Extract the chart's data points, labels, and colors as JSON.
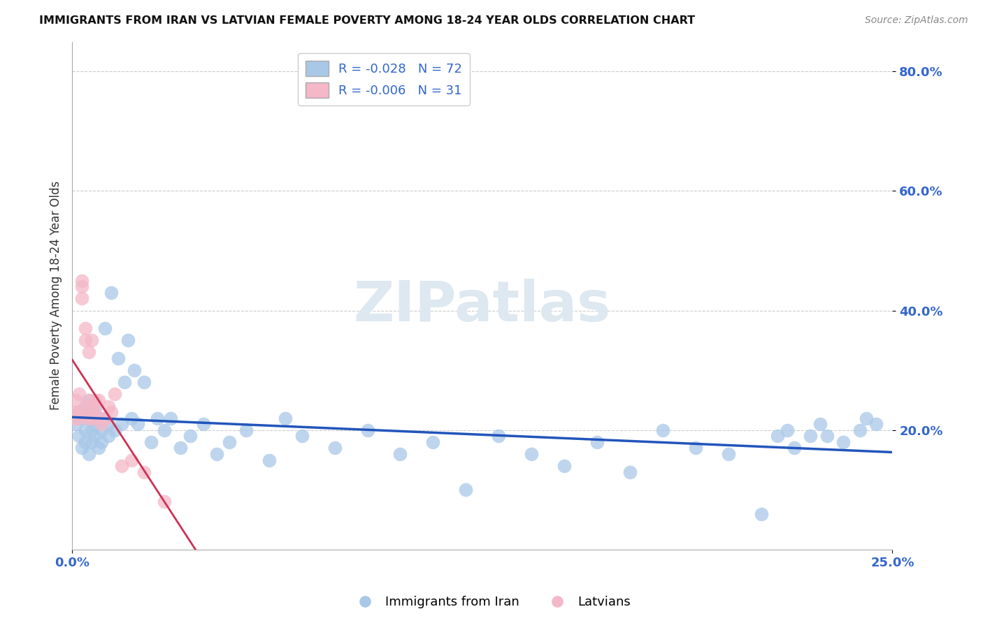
{
  "title": "IMMIGRANTS FROM IRAN VS LATVIAN FEMALE POVERTY AMONG 18-24 YEAR OLDS CORRELATION CHART",
  "source": "Source: ZipAtlas.com",
  "ylabel": "Female Poverty Among 18-24 Year Olds",
  "legend_label_blue": "Immigrants from Iran",
  "legend_label_pink": "Latvians",
  "legend_R_blue": "R = -0.028",
  "legend_N_blue": "N = 72",
  "legend_R_pink": "R = -0.006",
  "legend_N_pink": "N = 31",
  "xlim": [
    0.0,
    0.25
  ],
  "ylim": [
    0.0,
    0.85
  ],
  "x_ticks": [
    0.0,
    0.25
  ],
  "x_tick_labels": [
    "0.0%",
    "25.0%"
  ],
  "y_ticks": [
    0.2,
    0.4,
    0.6,
    0.8
  ],
  "y_tick_labels": [
    "20.0%",
    "40.0%",
    "60.0%",
    "80.0%"
  ],
  "blue_color": "#a8c8e8",
  "pink_color": "#f4b8c8",
  "trendline_blue": "#2255bb",
  "trendline_pink": "#cc3355",
  "trendline_pink_dashed": true,
  "watermark_text": "ZIPatlas",
  "watermark_color": "#dde8f0",
  "blue_x": [
    0.001,
    0.002,
    0.002,
    0.003,
    0.003,
    0.004,
    0.004,
    0.004,
    0.005,
    0.005,
    0.005,
    0.006,
    0.006,
    0.006,
    0.007,
    0.007,
    0.007,
    0.008,
    0.008,
    0.009,
    0.009,
    0.01,
    0.01,
    0.011,
    0.011,
    0.012,
    0.013,
    0.014,
    0.015,
    0.016,
    0.017,
    0.018,
    0.019,
    0.02,
    0.022,
    0.024,
    0.026,
    0.028,
    0.03,
    0.033,
    0.036,
    0.04,
    0.044,
    0.048,
    0.053,
    0.06,
    0.065,
    0.07,
    0.08,
    0.09,
    0.1,
    0.11,
    0.12,
    0.13,
    0.14,
    0.15,
    0.16,
    0.17,
    0.18,
    0.19,
    0.2,
    0.21,
    0.215,
    0.218,
    0.22,
    0.225,
    0.228,
    0.23,
    0.235,
    0.24,
    0.242,
    0.245
  ],
  "blue_y": [
    0.21,
    0.19,
    0.23,
    0.17,
    0.22,
    0.18,
    0.2,
    0.24,
    0.16,
    0.22,
    0.25,
    0.2,
    0.18,
    0.23,
    0.19,
    0.21,
    0.24,
    0.17,
    0.22,
    0.2,
    0.18,
    0.22,
    0.37,
    0.19,
    0.21,
    0.43,
    0.2,
    0.32,
    0.21,
    0.28,
    0.35,
    0.22,
    0.3,
    0.21,
    0.28,
    0.18,
    0.22,
    0.2,
    0.22,
    0.17,
    0.19,
    0.21,
    0.16,
    0.18,
    0.2,
    0.15,
    0.22,
    0.19,
    0.17,
    0.2,
    0.16,
    0.18,
    0.1,
    0.19,
    0.16,
    0.14,
    0.18,
    0.13,
    0.2,
    0.17,
    0.16,
    0.06,
    0.19,
    0.2,
    0.17,
    0.19,
    0.21,
    0.19,
    0.18,
    0.2,
    0.22,
    0.21
  ],
  "pink_x": [
    0.001,
    0.001,
    0.001,
    0.002,
    0.002,
    0.002,
    0.003,
    0.003,
    0.003,
    0.004,
    0.004,
    0.004,
    0.005,
    0.005,
    0.005,
    0.006,
    0.006,
    0.006,
    0.007,
    0.007,
    0.008,
    0.008,
    0.009,
    0.01,
    0.011,
    0.012,
    0.013,
    0.015,
    0.018,
    0.022,
    0.028
  ],
  "pink_y": [
    0.25,
    0.23,
    0.22,
    0.26,
    0.23,
    0.22,
    0.45,
    0.44,
    0.42,
    0.37,
    0.35,
    0.24,
    0.33,
    0.25,
    0.22,
    0.35,
    0.24,
    0.22,
    0.25,
    0.23,
    0.25,
    0.22,
    0.21,
    0.22,
    0.24,
    0.23,
    0.26,
    0.14,
    0.15,
    0.13,
    0.08
  ]
}
